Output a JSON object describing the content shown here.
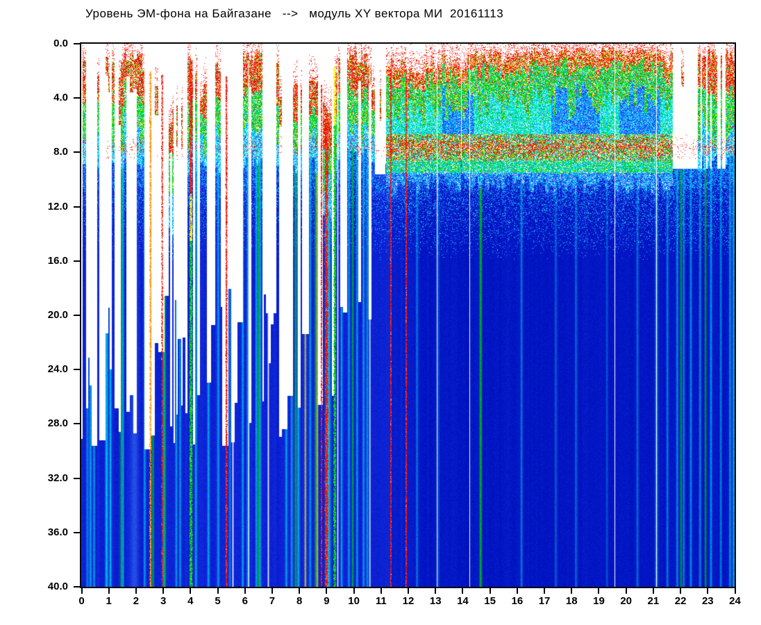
{
  "title": "Уровень ЭМ-фона на Байгазане   -->   модуль XY вектора МИ  20161113",
  "x_axis": {
    "ticks": [
      "0",
      "1",
      "2",
      "3",
      "4",
      "5",
      "6",
      "7",
      "8",
      "9",
      "10",
      "11",
      "12",
      "13",
      "14",
      "15",
      "16",
      "17",
      "18",
      "19",
      "20",
      "21",
      "22",
      "23",
      "24"
    ]
  },
  "y_axis": {
    "ticks": [
      "0.0",
      "4.0",
      "8.0",
      "12.0",
      "16.0",
      "20.0",
      "24.0",
      "28.0",
      "32.0",
      "36.0",
      "40.0"
    ]
  },
  "chart_data": {
    "type": "heatmap",
    "subtype": "spectrogram",
    "title": "Уровень ЭМ-фона на Байгазане --> модуль XY вектора МИ 20161113",
    "x_range": [
      0,
      24
    ],
    "y_range": [
      0,
      40
    ],
    "y_inverted": true,
    "grid": false,
    "legend": "none",
    "seed": 20161113,
    "palette": {
      "white": "#ffffff",
      "red": "#f51000",
      "orange": "#ff9000",
      "yellow": "#f8f400",
      "green": "#00d200",
      "cyan": "#00e8f6",
      "lcyan": "#90fbff",
      "lblue": "#3c82f8",
      "blue2": "#1e46f0",
      "deepL": "#0a1ed0",
      "deepR": "#0013c0"
    },
    "red_band": {
      "depth_from": 6.6,
      "depth_to": 8.6,
      "center": 7.6
    },
    "segments": [
      {
        "f": 0.0,
        "t": 0.18,
        "k": "b",
        "den": 0.75,
        "top": 2.2,
        "tj": 1.2,
        "core": 8.8,
        "rb": 0.5
      },
      {
        "f": 0.18,
        "t": 0.4,
        "k": "s",
        "den": 0.25,
        "top": 3.0,
        "tj": 1.2,
        "core": 9.0,
        "rb": 0.2
      },
      {
        "f": 0.4,
        "t": 0.62,
        "k": "b",
        "den": 0.55,
        "top": 2.8,
        "tj": 1.2,
        "core": 9.0,
        "rb": 0.4
      },
      {
        "f": 0.62,
        "t": 0.8,
        "k": "g",
        "den": 0.06,
        "top": 3.0,
        "tj": 1.0,
        "core": 9.0,
        "rb": 0.0
      },
      {
        "f": 0.8,
        "t": 1.15,
        "k": "b",
        "den": 0.85,
        "top": 1.6,
        "tj": 0.9,
        "core": 8.8,
        "rb": 0.5
      },
      {
        "f": 1.15,
        "t": 1.42,
        "k": "s",
        "den": 0.3,
        "top": 2.6,
        "tj": 1.2,
        "core": 9.0,
        "rb": 0.3
      },
      {
        "f": 1.42,
        "t": 2.28,
        "k": "b",
        "den": 0.88,
        "top": 1.2,
        "tj": 0.8,
        "core": 8.6,
        "rb": 0.5
      },
      {
        "f": 2.28,
        "t": 2.5,
        "k": "g",
        "den": 0.1,
        "top": 2.6,
        "tj": 1.0,
        "core": 9.0,
        "rb": 0.1
      },
      {
        "f": 2.5,
        "t": 2.68,
        "k": "b",
        "den": 0.5,
        "top": 2.4,
        "tj": 1.0,
        "core": 9.0,
        "rb": 0.3
      },
      {
        "f": 2.68,
        "t": 2.86,
        "k": "g",
        "den": 0.12,
        "top": 2.6,
        "tj": 1.0,
        "core": 9.0,
        "rb": 0.1
      },
      {
        "f": 2.86,
        "t": 3.12,
        "k": "b",
        "den": 0.5,
        "top": 2.2,
        "tj": 1.0,
        "core": 9.0,
        "rb": 0.3
      },
      {
        "f": 3.12,
        "t": 3.7,
        "k": "b",
        "den": 0.55,
        "top": 6.6,
        "tj": 2.2,
        "core": 13.5,
        "rb": 0.9
      },
      {
        "f": 3.7,
        "t": 3.88,
        "k": "g",
        "den": 0.1,
        "top": 3.0,
        "tj": 1.0,
        "core": 9.0,
        "rb": 0.0
      },
      {
        "f": 3.88,
        "t": 4.22,
        "k": "b",
        "den": 0.85,
        "top": 1.6,
        "tj": 0.9,
        "core": 9.0,
        "rb": 0.5
      },
      {
        "f": 4.22,
        "t": 4.56,
        "k": "b",
        "den": 0.6,
        "top": 2.8,
        "tj": 1.2,
        "core": 9.2,
        "rb": 0.4
      },
      {
        "f": 4.56,
        "t": 4.8,
        "k": "g",
        "den": 0.08,
        "top": 3.0,
        "tj": 1.0,
        "core": 9.0,
        "rb": 0.0
      },
      {
        "f": 4.8,
        "t": 5.16,
        "k": "b",
        "den": 0.65,
        "top": 2.4,
        "tj": 1.1,
        "core": 9.0,
        "rb": 0.4
      },
      {
        "f": 5.16,
        "t": 5.56,
        "k": "s",
        "den": 0.25,
        "top": 3.0,
        "tj": 1.4,
        "core": 9.0,
        "rb": 0.2
      },
      {
        "f": 5.56,
        "t": 5.86,
        "k": "g",
        "den": 0.07,
        "top": 3.0,
        "tj": 1.0,
        "core": 9.0,
        "rb": 0.0
      },
      {
        "f": 5.86,
        "t": 6.66,
        "k": "b",
        "den": 0.92,
        "top": 0.9,
        "tj": 0.6,
        "core": 8.5,
        "rb": 0.5
      },
      {
        "f": 6.66,
        "t": 6.86,
        "k": "g",
        "den": 0.12,
        "top": 2.5,
        "tj": 1.0,
        "core": 9.0,
        "rb": 0.1
      },
      {
        "f": 6.86,
        "t": 7.26,
        "k": "b",
        "den": 0.7,
        "top": 1.7,
        "tj": 0.9,
        "core": 8.8,
        "rb": 0.45
      },
      {
        "f": 7.26,
        "t": 7.66,
        "k": "s",
        "den": 0.25,
        "top": 2.8,
        "tj": 1.2,
        "core": 9.0,
        "rb": 0.2
      },
      {
        "f": 7.66,
        "t": 8.06,
        "k": "b",
        "den": 0.55,
        "top": 2.4,
        "tj": 1.1,
        "core": 9.0,
        "rb": 0.35
      },
      {
        "f": 8.06,
        "t": 8.26,
        "k": "g",
        "den": 0.1,
        "top": 2.8,
        "tj": 1.0,
        "core": 9.0,
        "rb": 0.1
      },
      {
        "f": 8.26,
        "t": 8.66,
        "k": "b",
        "den": 0.65,
        "top": 2.1,
        "tj": 1.0,
        "core": 8.8,
        "rb": 0.45
      },
      {
        "f": 8.66,
        "t": 8.86,
        "k": "s",
        "den": 0.3,
        "top": 3.0,
        "tj": 1.3,
        "core": 9.0,
        "rb": 0.2
      },
      {
        "f": 8.86,
        "t": 9.16,
        "k": "b",
        "den": 0.8,
        "top": 5.6,
        "tj": 1.8,
        "core": 13.0,
        "rb": 0.9
      },
      {
        "f": 9.16,
        "t": 9.42,
        "k": "b",
        "den": 0.7,
        "top": 1.9,
        "tj": 0.9,
        "core": 8.8,
        "rb": 0.4
      },
      {
        "f": 9.42,
        "t": 9.62,
        "k": "g",
        "den": 0.1,
        "top": 2.6,
        "tj": 1.0,
        "core": 9.0,
        "rb": 0.1
      },
      {
        "f": 9.62,
        "t": 10.66,
        "k": "b",
        "den": 0.9,
        "top": 1.1,
        "tj": 0.7,
        "core": 8.3,
        "rb": 0.5
      },
      {
        "f": 10.66,
        "t": 11.16,
        "k": "s",
        "den": 0.33,
        "top": 3.4,
        "tj": 1.6,
        "core": 9.2,
        "rb": 0.35
      },
      {
        "f": 11.16,
        "t": 12.62,
        "k": "c",
        "den": 0.96,
        "top": 1.8,
        "tj": 0.8,
        "core": 9.3,
        "rb": 1.0
      },
      {
        "f": 12.62,
        "t": 14.46,
        "k": "c",
        "den": 0.96,
        "top": 1.3,
        "tj": 0.7,
        "core": 9.0,
        "rb": 1.0
      },
      {
        "f": 14.46,
        "t": 16.42,
        "k": "c",
        "den": 0.97,
        "top": 1.0,
        "tj": 0.6,
        "core": 9.0,
        "rb": 1.0
      },
      {
        "f": 16.42,
        "t": 21.38,
        "k": "c",
        "den": 0.975,
        "top": 0.6,
        "tj": 0.45,
        "core": 9.2,
        "rb": 0.95
      },
      {
        "f": 21.38,
        "t": 21.72,
        "k": "c",
        "den": 0.8,
        "top": 1.2,
        "tj": 0.7,
        "core": 9.2,
        "rb": 0.8
      },
      {
        "f": 21.72,
        "t": 22.56,
        "k": "gl",
        "den": 0.3,
        "top": 1.5,
        "tj": 0.9,
        "core": 8.8,
        "rb": 0.5
      },
      {
        "f": 22.56,
        "t": 23.28,
        "k": "b",
        "den": 0.88,
        "top": 0.8,
        "tj": 0.5,
        "core": 8.8,
        "rb": 0.7
      },
      {
        "f": 23.28,
        "t": 23.56,
        "k": "gl",
        "den": 0.35,
        "top": 1.2,
        "tj": 0.8,
        "core": 8.8,
        "rb": 0.4
      },
      {
        "f": 23.56,
        "t": 24.01,
        "k": "b",
        "den": 0.9,
        "top": 0.8,
        "tj": 0.5,
        "core": 8.8,
        "rb": 0.7
      }
    ],
    "blue_patches": [
      {
        "f": 13.25,
        "t": 14.42,
        "a": 3.0,
        "b": 7.0
      },
      {
        "f": 17.25,
        "t": 19.05,
        "a": 2.8,
        "b": 7.2
      },
      {
        "f": 19.75,
        "t": 21.25,
        "a": 2.6,
        "b": 7.0
      }
    ],
    "gradient_columns": [
      {
        "h": 4.02,
        "w": 2.5,
        "bands": [
          [
            1.2,
            11,
            "red"
          ],
          [
            11,
            14.5,
            "yellow"
          ],
          [
            14.5,
            40,
            "green"
          ]
        ]
      },
      {
        "h": 9.0,
        "w": 3.0,
        "bands": [
          [
            5.5,
            40,
            "red"
          ]
        ]
      },
      {
        "h": 9.3,
        "w": 2.0,
        "bands": [
          [
            1.6,
            6,
            "yellow"
          ],
          [
            6,
            40,
            "green"
          ]
        ]
      },
      {
        "h": 5.32,
        "w": 1.6,
        "bands": [
          [
            2.4,
            40,
            "red"
          ]
        ]
      },
      {
        "h": 2.53,
        "w": 1.4,
        "bands": [
          [
            2.0,
            40,
            "orange"
          ]
        ]
      },
      {
        "h": 2.96,
        "w": 1.2,
        "bands": [
          [
            2.2,
            40,
            "red"
          ]
        ]
      },
      {
        "h": 8.82,
        "w": 1.2,
        "bands": [
          [
            3.0,
            40,
            "red"
          ]
        ]
      },
      {
        "h": 11.36,
        "w": 1.2,
        "bands": [
          [
            1.8,
            40,
            "red"
          ]
        ]
      },
      {
        "h": 11.92,
        "w": 1.2,
        "bands": [
          [
            1.8,
            40,
            "red"
          ]
        ]
      }
    ],
    "streaks": [
      {
        "h": 0.22,
        "w": 2.0,
        "c": "cyan",
        "a": 0.5
      },
      {
        "h": 0.33,
        "w": 1.5,
        "c": "cyan",
        "a": 0.75
      },
      {
        "h": 0.46,
        "w": 1.5,
        "c": "cyan",
        "a": 0.7
      },
      {
        "h": 0.92,
        "w": 2.0,
        "c": "cyan",
        "a": 0.9
      },
      {
        "h": 1.06,
        "w": 1.5,
        "c": "cyan",
        "a": 0.9
      },
      {
        "h": 1.46,
        "w": 1.4,
        "c": "green",
        "a": 0.85
      },
      {
        "h": 1.52,
        "w": 1.5,
        "c": "cyan",
        "a": 0.7
      },
      {
        "h": 1.95,
        "w": 5.0,
        "c": "lblue",
        "a": 0.55
      },
      {
        "h": 2.32,
        "w": 1.5,
        "c": "cyan",
        "a": 0.7
      },
      {
        "h": 2.62,
        "w": 1.4,
        "c": "green",
        "a": 0.85
      },
      {
        "h": 3.02,
        "w": 1.5,
        "c": "cyan",
        "a": 0.75
      },
      {
        "h": 3.06,
        "w": 1.4,
        "c": "green",
        "a": 0.8
      },
      {
        "h": 3.48,
        "w": 1.5,
        "c": "cyan",
        "a": 0.7
      },
      {
        "h": 3.62,
        "w": 1.5,
        "c": "cyan",
        "a": 0.7
      },
      {
        "h": 4.2,
        "w": 1.5,
        "c": "cyan",
        "a": 0.75
      },
      {
        "h": 4.66,
        "w": 1.5,
        "c": "cyan",
        "a": 0.75
      },
      {
        "h": 5.02,
        "w": 1.5,
        "c": "cyan",
        "a": 0.7
      },
      {
        "h": 5.45,
        "w": 1.5,
        "c": "cyan",
        "a": 0.5
      },
      {
        "h": 5.92,
        "w": 1.5,
        "c": "cyan",
        "a": 0.75
      },
      {
        "h": 6.12,
        "w": 2.0,
        "c": "cyan",
        "a": 0.6
      },
      {
        "h": 6.42,
        "w": 1.5,
        "c": "cyan",
        "a": 0.75
      },
      {
        "h": 6.5,
        "w": 1.4,
        "c": "green",
        "a": 0.85
      },
      {
        "h": 6.56,
        "w": 1.5,
        "c": "cyan",
        "a": 0.7
      },
      {
        "h": 7.52,
        "w": 1.5,
        "c": "cyan",
        "a": 0.75
      },
      {
        "h": 7.72,
        "w": 1.5,
        "c": "cyan",
        "a": 0.7
      },
      {
        "h": 7.86,
        "w": 1.4,
        "c": "green",
        "a": 0.85
      },
      {
        "h": 7.96,
        "w": 2.0,
        "c": "cyan",
        "a": 0.75
      },
      {
        "h": 8.22,
        "w": 1.3,
        "c": "yellow",
        "a": 0.85
      },
      {
        "h": 8.4,
        "w": 1.5,
        "c": "cyan",
        "a": 0.7
      },
      {
        "h": 8.6,
        "w": 1.4,
        "c": "green",
        "a": 0.85
      },
      {
        "h": 8.66,
        "w": 1.3,
        "c": "yellow",
        "a": 0.85
      },
      {
        "h": 9.06,
        "w": 3.5,
        "c": "cyan",
        "a": 0.95
      },
      {
        "h": 9.55,
        "w": 1.5,
        "c": "cyan",
        "a": 0.75
      },
      {
        "h": 9.82,
        "w": 1.5,
        "c": "cyan",
        "a": 0.7
      },
      {
        "h": 9.96,
        "w": 1.4,
        "c": "green",
        "a": 0.85
      },
      {
        "h": 10.12,
        "w": 1.5,
        "c": "cyan",
        "a": 0.7
      },
      {
        "h": 10.36,
        "w": 1.5,
        "c": "cyan",
        "a": 0.7
      },
      {
        "h": 10.5,
        "w": 2.0,
        "c": "cyan",
        "a": 0.6
      },
      {
        "h": 12.32,
        "w": 1.5,
        "c": "cyan",
        "a": 0.5
      },
      {
        "h": 13.1,
        "w": 1.5,
        "c": "cyan",
        "a": 0.4
      },
      {
        "h": 14.66,
        "w": 1.8,
        "c": "green",
        "a": 0.95
      },
      {
        "h": 16.16,
        "w": 1.5,
        "c": "cyan",
        "a": 0.55
      },
      {
        "h": 17.42,
        "w": 1.5,
        "c": "cyan",
        "a": 0.4
      },
      {
        "h": 18.16,
        "w": 1.5,
        "c": "cyan",
        "a": 0.45
      },
      {
        "h": 19.3,
        "w": 1.5,
        "c": "cyan",
        "a": 0.35
      },
      {
        "h": 20.42,
        "w": 1.5,
        "c": "cyan",
        "a": 0.5
      },
      {
        "h": 21.12,
        "w": 2.0,
        "c": "cyan",
        "a": 0.7
      },
      {
        "h": 21.52,
        "w": 1.5,
        "c": "cyan",
        "a": 0.6
      },
      {
        "h": 21.88,
        "w": 1.5,
        "c": "cyan",
        "a": 0.65
      },
      {
        "h": 22.02,
        "w": 1.4,
        "c": "green",
        "a": 0.8
      },
      {
        "h": 22.12,
        "w": 1.5,
        "c": "cyan",
        "a": 0.6
      },
      {
        "h": 22.38,
        "w": 1.5,
        "c": "cyan",
        "a": 0.65
      },
      {
        "h": 22.72,
        "w": 1.5,
        "c": "cyan",
        "a": 0.6
      },
      {
        "h": 22.92,
        "w": 1.4,
        "c": "green",
        "a": 0.8
      },
      {
        "h": 23.12,
        "w": 1.5,
        "c": "cyan",
        "a": 0.7
      },
      {
        "h": 23.48,
        "w": 1.5,
        "c": "cyan",
        "a": 0.6
      },
      {
        "h": 23.82,
        "w": 1.5,
        "c": "cyan",
        "a": 0.7
      },
      {
        "h": 23.96,
        "w": 2.0,
        "c": "cyan",
        "a": 0.8
      }
    ],
    "white_lines": [
      5.56,
      6.14,
      6.86,
      9.41,
      10.59
    ]
  }
}
